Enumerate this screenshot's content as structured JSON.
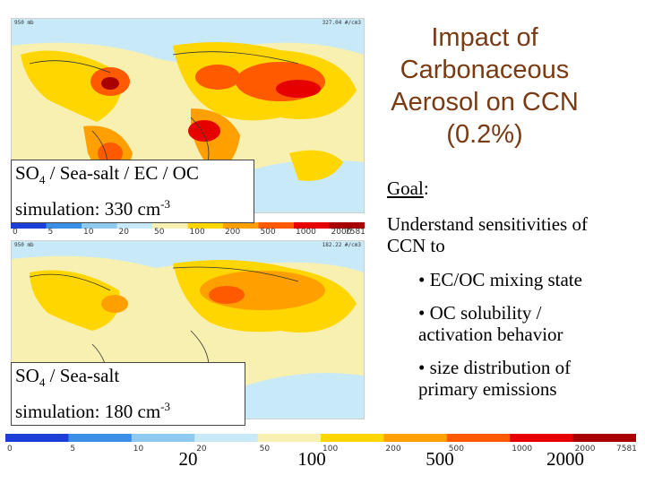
{
  "slide": {
    "title": "Impact of Carbonaceous Aerosol on CCN (0.2%)",
    "top_map_label": {
      "species": "SO",
      "sub": "4",
      "rest": " / Sea-salt / EC / OC",
      "sim": "simulation: 330 cm",
      "sup": "-3"
    },
    "bottom_map_label": {
      "species": "SO",
      "sub": "4",
      "rest": " / Sea-salt",
      "sim": "simulation: 180 cm",
      "sup": "-3"
    },
    "goal_label": "Goal",
    "goal_colon": ":",
    "sensitivities": "Understand sensitivities of CCN to",
    "bullets": [
      "• EC/OC mixing state",
      "• OC solubility / activation behavior",
      "• size distribution of primary emissions"
    ]
  },
  "maps": {
    "top_header_left": "950 mb",
    "top_header_right": "327.04 #/cm3",
    "bottom_header_left": "950 mb",
    "bottom_header_right": "182.22 #/cm3"
  },
  "colorbar": {
    "small_ticks": [
      "0",
      "5",
      "10",
      "20",
      "50",
      "100",
      "200",
      "500",
      "1000",
      "2000",
      "7581.1"
    ],
    "large_labels": [
      "20",
      "100",
      "500",
      "2000"
    ],
    "colors": [
      "#1c3fd8",
      "#3a8ee6",
      "#8ecaf0",
      "#c8eaf8",
      "#f7f0b0",
      "#ffd600",
      "#ffa000",
      "#ff5a00",
      "#e60000",
      "#a80000"
    ]
  }
}
